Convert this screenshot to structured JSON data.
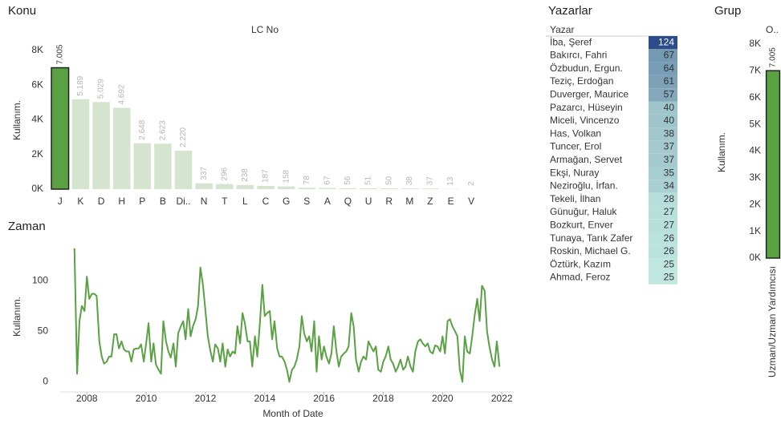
{
  "chart_data": [
    {
      "type": "bar",
      "title": "Konu",
      "x_label": "LC No",
      "y_label": "Kullanım.",
      "categories": [
        "J",
        "K",
        "D",
        "H",
        "P",
        "B",
        "Di..",
        "N",
        "T",
        "L",
        "C",
        "G",
        "S",
        "A",
        "Q",
        "U",
        "R",
        "M",
        "Z",
        "E",
        "V"
      ],
      "values": [
        7005,
        5189,
        5029,
        4692,
        2648,
        2623,
        2220,
        337,
        296,
        238,
        187,
        158,
        78,
        67,
        56,
        51,
        50,
        38,
        37,
        13,
        2
      ],
      "value_labels": [
        "7.005",
        "5.189",
        "5.029",
        "4.692",
        "2.648",
        "2.623",
        "2.220",
        "337",
        "296",
        "238",
        "187",
        "158",
        "78",
        "67",
        "56",
        "51",
        "50",
        "38",
        "37",
        "13",
        "2"
      ],
      "colors": [
        "#5aa144",
        "#d4e4cf",
        "#d4e4cf",
        "#d4e4cf",
        "#d4e4cf",
        "#d4e4cf",
        "#d4e4cf",
        "#d4e4cf",
        "#d4e4cf",
        "#d4e4cf",
        "#d4e4cf",
        "#d4e4cf",
        "#d4e4cf",
        "#d4e4cf",
        "#d4e4cf",
        "#d4e4cf",
        "#d4e4cf",
        "#d4e4cf",
        "#d4e4cf",
        "#d4e4cf",
        "#d4e4cf"
      ],
      "highlight_color": "#5aa144",
      "ylim": [
        0,
        8000
      ],
      "yticks": [
        {
          "value": 0,
          "label": "0K"
        },
        {
          "value": 2000,
          "label": "2K"
        },
        {
          "value": 4000,
          "label": "4K"
        },
        {
          "value": 6000,
          "label": "6K"
        },
        {
          "value": 8000,
          "label": "8K"
        }
      ]
    },
    {
      "type": "line",
      "title": "Zaman",
      "x_label": "Month of Date",
      "y_label": "Kullanım.",
      "color": "#5aa144",
      "x": [
        2007.58,
        2007.67,
        2007.75,
        2007.83,
        2007.92,
        2008.0,
        2008.08,
        2008.17,
        2008.25,
        2008.33,
        2008.42,
        2008.5,
        2008.58,
        2008.67,
        2008.75,
        2008.83,
        2008.92,
        2009.0,
        2009.08,
        2009.17,
        2009.25,
        2009.33,
        2009.42,
        2009.5,
        2009.58,
        2009.67,
        2009.75,
        2009.83,
        2009.92,
        2010.0,
        2010.08,
        2010.17,
        2010.25,
        2010.33,
        2010.42,
        2010.5,
        2010.58,
        2010.67,
        2010.75,
        2010.83,
        2010.92,
        2011.0,
        2011.08,
        2011.17,
        2011.25,
        2011.33,
        2011.42,
        2011.5,
        2011.58,
        2011.67,
        2011.75,
        2011.83,
        2011.92,
        2012.0,
        2012.08,
        2012.17,
        2012.25,
        2012.33,
        2012.42,
        2012.5,
        2012.58,
        2012.67,
        2012.75,
        2012.83,
        2012.92,
        2013.0,
        2013.08,
        2013.17,
        2013.25,
        2013.33,
        2013.42,
        2013.5,
        2013.58,
        2013.67,
        2013.75,
        2013.83,
        2013.92,
        2014.0,
        2014.08,
        2014.17,
        2014.25,
        2014.33,
        2014.42,
        2014.5,
        2014.58,
        2014.67,
        2014.75,
        2014.83,
        2014.92,
        2015.0,
        2015.08,
        2015.17,
        2015.25,
        2015.33,
        2015.42,
        2015.5,
        2015.58,
        2015.67,
        2015.75,
        2015.83,
        2015.92,
        2016.0,
        2016.08,
        2016.17,
        2016.25,
        2016.33,
        2016.42,
        2016.5,
        2016.58,
        2016.67,
        2016.75,
        2016.83,
        2016.92,
        2017.0,
        2017.08,
        2017.17,
        2017.25,
        2017.33,
        2017.42,
        2017.5,
        2017.58,
        2017.67,
        2017.75,
        2017.83,
        2017.92,
        2018.0,
        2018.08,
        2018.17,
        2018.25,
        2018.33,
        2018.42,
        2018.5,
        2018.58,
        2018.67,
        2018.75,
        2018.83,
        2018.92,
        2019.0,
        2019.08,
        2019.17,
        2019.25,
        2019.33,
        2019.42,
        2019.5,
        2019.58,
        2019.67,
        2019.75,
        2019.83,
        2019.92,
        2020.0,
        2020.08,
        2020.17,
        2020.25,
        2020.33,
        2020.42,
        2020.5,
        2020.58,
        2020.67,
        2020.75,
        2020.83,
        2020.92,
        2021.0,
        2021.08,
        2021.17,
        2021.25,
        2021.33,
        2021.42,
        2021.5,
        2021.58,
        2021.67,
        2021.75,
        2021.83,
        2021.92
      ],
      "values": [
        132,
        8,
        60,
        75,
        70,
        104,
        82,
        87,
        87,
        85,
        40,
        25,
        18,
        20,
        25,
        25,
        47,
        47,
        33,
        40,
        32,
        30,
        30,
        20,
        32,
        33,
        33,
        37,
        20,
        38,
        58,
        20,
        38,
        17,
        12,
        8,
        60,
        40,
        30,
        24,
        38,
        15,
        48,
        55,
        60,
        42,
        72,
        45,
        55,
        62,
        75,
        113,
        95,
        70,
        45,
        30,
        20,
        37,
        33,
        20,
        38,
        15,
        32,
        25,
        30,
        28,
        55,
        38,
        68,
        58,
        40,
        40,
        15,
        45,
        25,
        55,
        96,
        65,
        68,
        70,
        42,
        60,
        33,
        25,
        25,
        20,
        12,
        0,
        12,
        15,
        22,
        35,
        65,
        48,
        40,
        45,
        30,
        60,
        10,
        45,
        22,
        35,
        25,
        18,
        28,
        55,
        30,
        15,
        25,
        28,
        30,
        35,
        68,
        55,
        22,
        10,
        20,
        25,
        22,
        40,
        35,
        30,
        35,
        12,
        10,
        20,
        25,
        35,
        22,
        18,
        10,
        15,
        22,
        12,
        15,
        25,
        15,
        10,
        30,
        40,
        42,
        38,
        35,
        38,
        30,
        28,
        36,
        35,
        30,
        45,
        28,
        60,
        62,
        55,
        50,
        45,
        12,
        0,
        45,
        30,
        28,
        45,
        65,
        82,
        60,
        95,
        90,
        50,
        35,
        22,
        15,
        40,
        15
      ],
      "xlim": [
        2007.1,
        2022.4
      ],
      "xticks": [
        2008,
        2010,
        2012,
        2014,
        2016,
        2018,
        2020,
        2022
      ],
      "ylim": [
        -10,
        135
      ],
      "yticks": [
        0,
        50,
        100
      ]
    },
    {
      "type": "table",
      "title": "Yazarlar",
      "column": "Yazar",
      "rows": [
        "İba, Şeref",
        "Bakırcı, Fahri",
        "Özbudun, Ergun.",
        "Teziç, Erdoğan",
        "Duverger, Maurice",
        "Pazarcı, Hüseyin",
        "Miceli, Vincenzo",
        "Has, Volkan",
        "Tuncer, Erol",
        "Armağan, Servet",
        "Ekşi, Nuray",
        "Neziroğlu, İrfan.",
        "Tekeli, İlhan",
        "Günuğur, Haluk",
        "Bozkurt, Enver",
        "Tunaya, Tarık Zafer",
        "Roskin, Michael G.",
        "Öztürk, Kazım",
        "Ahmad, Feroz"
      ],
      "values": [
        124,
        67,
        64,
        61,
        57,
        40,
        40,
        38,
        37,
        37,
        35,
        34,
        28,
        27,
        27,
        26,
        26,
        25,
        25
      ],
      "color_range": [
        "#bfe7df",
        "#2b4c88"
      ]
    },
    {
      "type": "bar",
      "title": "Grup",
      "x_label": "O..",
      "y_label": "Kullanım.",
      "categories": [
        "Uzman/Uzman Yardımcısı"
      ],
      "values": [
        7005
      ],
      "value_labels": [
        "7.005"
      ],
      "colors": [
        "#5aa144"
      ],
      "highlight_color": "#5aa144",
      "ylim": [
        0,
        8000
      ],
      "yticks": [
        {
          "value": 0,
          "label": "0K"
        },
        {
          "value": 1000,
          "label": "1K"
        },
        {
          "value": 2000,
          "label": "2K"
        },
        {
          "value": 3000,
          "label": "3K"
        },
        {
          "value": 4000,
          "label": "4K"
        },
        {
          "value": 5000,
          "label": "5K"
        },
        {
          "value": 6000,
          "label": "6K"
        },
        {
          "value": 7000,
          "label": "7K"
        },
        {
          "value": 8000,
          "label": "8K"
        }
      ]
    }
  ]
}
